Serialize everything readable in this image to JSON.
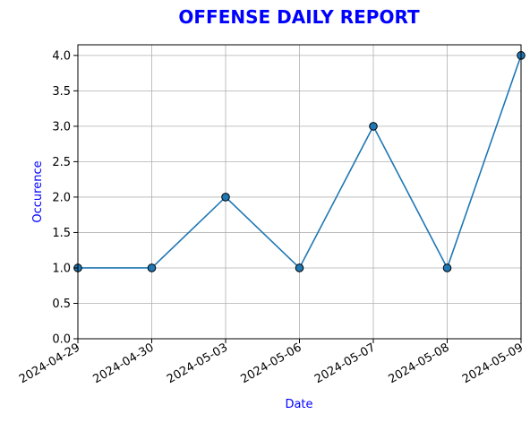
{
  "chart_data": {
    "type": "line",
    "title": "OFFENSE DAILY REPORT",
    "xlabel": "Date",
    "ylabel": "Occurence",
    "categories": [
      "2024-04-29",
      "2024-04-30",
      "2024-05-03",
      "2024-05-06",
      "2024-05-07",
      "2024-05-08",
      "2024-05-09"
    ],
    "series": [
      {
        "values": [
          1,
          1,
          2,
          1,
          3,
          1,
          4
        ]
      }
    ],
    "ylim": [
      0,
      4.15
    ],
    "yticks": [
      "0.0",
      "0.5",
      "1.0",
      "1.5",
      "2.0",
      "2.5",
      "3.0",
      "3.5",
      "4.0"
    ],
    "grid": true,
    "marker": "circle",
    "colors": {
      "title": "#0000ff",
      "axis_labels": "#0000ff",
      "line": "#1f77b4",
      "marker_edge": "#000000",
      "grid": "#b0b0b0",
      "axis": "#000000"
    }
  }
}
